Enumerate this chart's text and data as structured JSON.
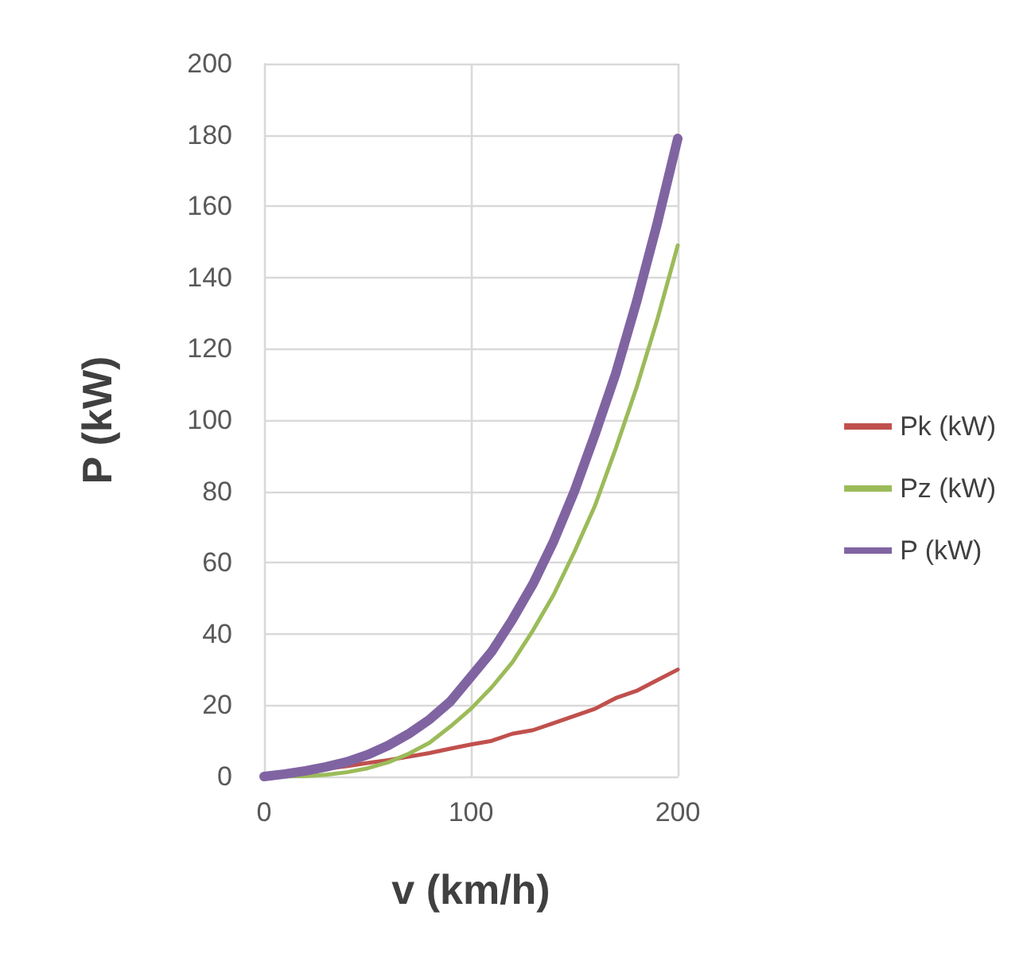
{
  "chart_data": {
    "type": "line",
    "xlabel": "v (km/h)",
    "ylabel": "P (kW)",
    "x": [
      0,
      10,
      20,
      30,
      40,
      50,
      60,
      70,
      80,
      90,
      100,
      110,
      120,
      130,
      140,
      150,
      160,
      170,
      180,
      190,
      200
    ],
    "series": [
      {
        "name": "Pk (kW)",
        "color": "#c0504d",
        "values": [
          null,
          null,
          1.4,
          2.2,
          2.9,
          3.8,
          4.6,
          5.6,
          6.6,
          7.8,
          9,
          10,
          12,
          13,
          15,
          17,
          19,
          22,
          24,
          27,
          30
        ]
      },
      {
        "name": "Pz (kW)",
        "color": "#9bbb59",
        "values": [
          0,
          0,
          0.1,
          0.5,
          1.2,
          2.3,
          4,
          6.4,
          9.5,
          14,
          19,
          25,
          32,
          41,
          51,
          63,
          76,
          92,
          109,
          128,
          149
        ]
      },
      {
        "name": "P (kW)",
        "color": "#8064a2",
        "values": [
          0,
          0.7,
          1.6,
          2.7,
          4.1,
          6.1,
          8.7,
          12,
          16,
          21,
          28,
          35,
          44,
          54,
          66,
          80,
          96,
          113,
          133,
          155,
          179
        ]
      }
    ],
    "xlim": [
      0,
      200
    ],
    "xticks": [
      0,
      100,
      200
    ],
    "ylim": [
      0,
      200
    ],
    "yticks": [
      0,
      20,
      40,
      60,
      80,
      100,
      120,
      140,
      160,
      180,
      200
    ],
    "grid": true,
    "legend": "right",
    "marker": "none",
    "line_style": "solid"
  }
}
